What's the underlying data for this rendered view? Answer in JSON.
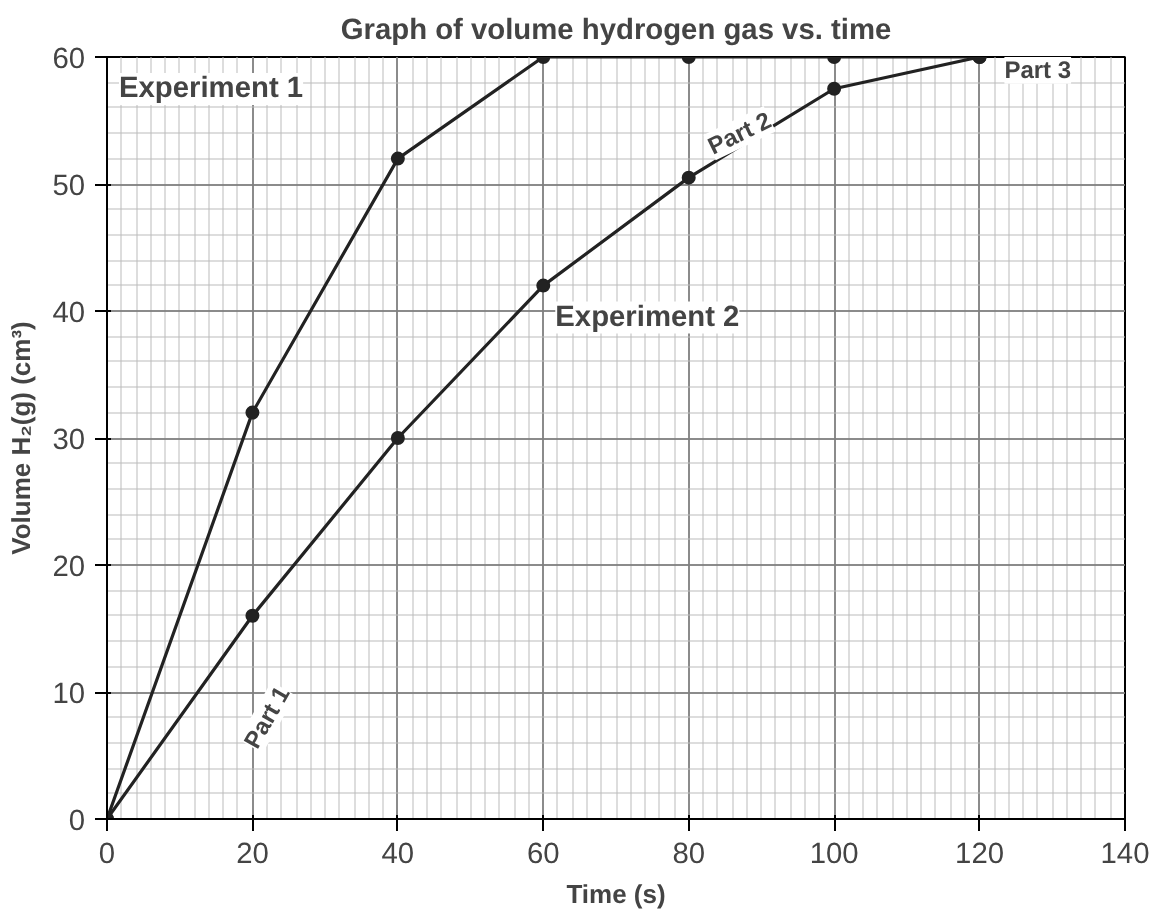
{
  "chart_data": {
    "type": "line",
    "title": "Graph of volume hydrogen gas vs. time",
    "xlabel": "Time (s)",
    "ylabel": "Volume H₂(g) (cm³)",
    "x": [
      0,
      20,
      40,
      60,
      80,
      100,
      120
    ],
    "series": [
      {
        "name": "Experiment 1",
        "color": "#222222",
        "values": [
          0,
          32,
          52,
          60,
          60,
          60,
          60
        ]
      },
      {
        "name": "Experiment 2",
        "color": "#222222",
        "values": [
          0,
          16,
          30,
          42,
          50.5,
          57.5,
          60
        ]
      }
    ],
    "annotations": [
      {
        "text": "Part 1",
        "x": 22,
        "y": 8
      },
      {
        "text": "Part 2",
        "x": 87,
        "y": 54
      },
      {
        "text": "Part 3",
        "x": 128,
        "y": 59
      }
    ],
    "xlim": [
      0,
      140
    ],
    "ylim": [
      0,
      60
    ],
    "xticks": [
      0,
      20,
      40,
      60,
      80,
      100,
      120,
      140
    ],
    "yticks": [
      0,
      10,
      20,
      30,
      40,
      50,
      60
    ],
    "grid": true,
    "marker": "circle",
    "line_style": "solid"
  }
}
